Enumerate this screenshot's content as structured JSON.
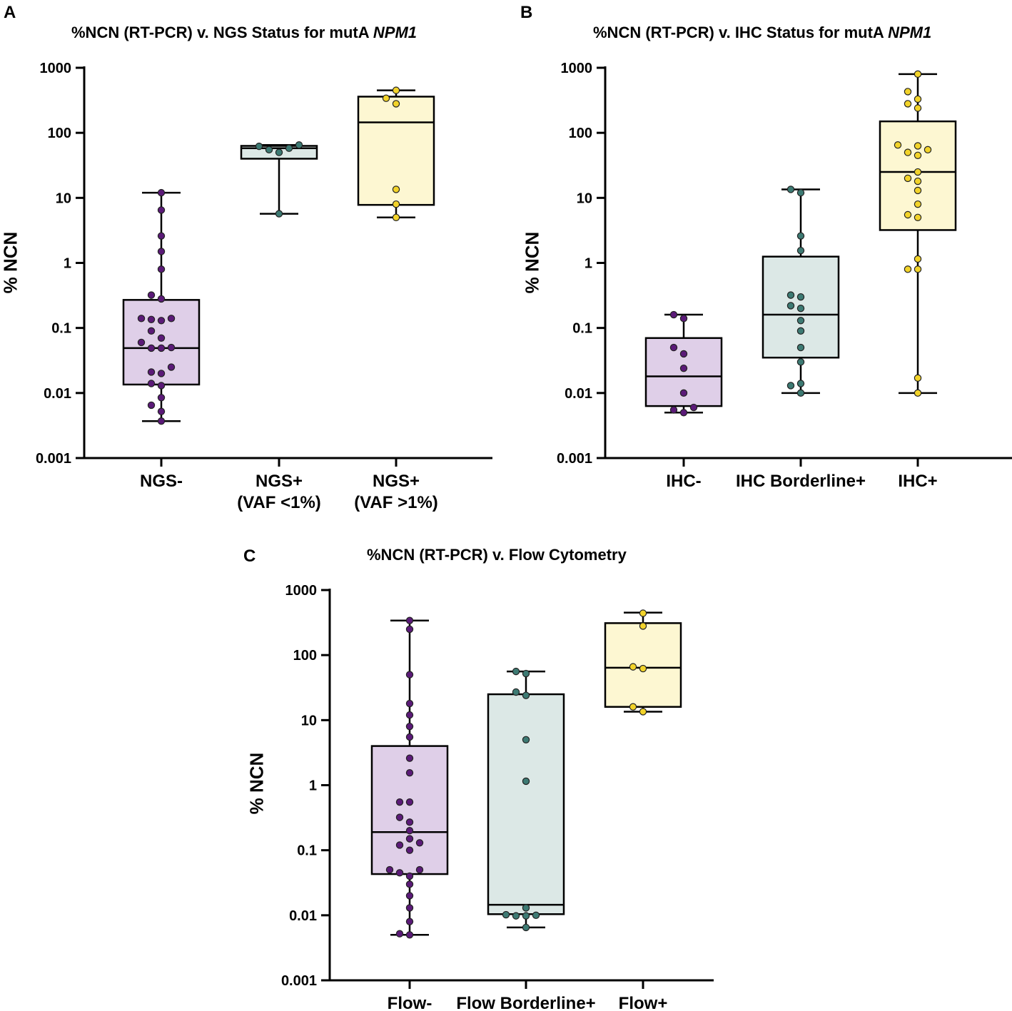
{
  "chart_data": [
    {
      "id": "A",
      "panel_label": "A",
      "type": "box",
      "title_prefix": "%NCN (RT-PCR) v. NGS Status for mutA ",
      "title_gene": "NPM1",
      "ylabel": "% NCN",
      "yscale": "log",
      "ylim": [
        0.001,
        1000
      ],
      "yticks": [
        {
          "value": 0.001,
          "label": "0.001"
        },
        {
          "value": 0.01,
          "label": "0.01"
        },
        {
          "value": 0.1,
          "label": "0.1"
        },
        {
          "value": 1,
          "label": "1"
        },
        {
          "value": 10,
          "label": "10"
        },
        {
          "value": 100,
          "label": "100"
        },
        {
          "value": 1000,
          "label": "1000"
        }
      ],
      "groups": [
        {
          "label_lines": [
            "NGS-"
          ],
          "color": "#dfcfe8",
          "point_color": "#5b1a78",
          "whisker_low": 0.0037,
          "q1": 0.0135,
          "median": 0.049,
          "q3": 0.27,
          "whisker_high": 12,
          "points": [
            0.0037,
            0.0052,
            0.0065,
            0.0085,
            0.013,
            0.014,
            0.02,
            0.021,
            0.025,
            0.049,
            0.049,
            0.05,
            0.06,
            0.07,
            0.09,
            0.13,
            0.135,
            0.14,
            0.14,
            0.28,
            0.32,
            0.8,
            1.5,
            2.6,
            6.5,
            12
          ]
        },
        {
          "label_lines": [
            "NGS+",
            "(VAF <1%)"
          ],
          "color": "#dce8e6",
          "point_color": "#3d7a73",
          "whisker_low": 5.7,
          "q1": 40,
          "median": 58,
          "q3": 63,
          "whisker_high": 65,
          "points": [
            5.7,
            50,
            55,
            58,
            62,
            65
          ]
        },
        {
          "label_lines": [
            "NGS+",
            "(VAF >1%)"
          ],
          "color": "#fdf7d2",
          "point_color": "#f2d32a",
          "whisker_low": 5,
          "q1": 7.8,
          "median": 145,
          "q3": 360,
          "whisker_high": 450,
          "points": [
            5,
            8,
            13.5,
            280,
            340,
            450
          ]
        }
      ]
    },
    {
      "id": "B",
      "panel_label": "B",
      "type": "box",
      "title_prefix": "%NCN (RT-PCR) v. IHC Status for mutA ",
      "title_gene": "NPM1",
      "ylabel": "% NCN",
      "yscale": "log",
      "ylim": [
        0.001,
        1000
      ],
      "yticks": [
        {
          "value": 0.001,
          "label": "0.001"
        },
        {
          "value": 0.01,
          "label": "0.01"
        },
        {
          "value": 0.1,
          "label": "0.1"
        },
        {
          "value": 1,
          "label": "1"
        },
        {
          "value": 10,
          "label": "10"
        },
        {
          "value": 100,
          "label": "100"
        },
        {
          "value": 1000,
          "label": "1000"
        }
      ],
      "groups": [
        {
          "label_lines": [
            "IHC-"
          ],
          "color": "#dfcfe8",
          "point_color": "#5b1a78",
          "whisker_low": 0.005,
          "q1": 0.0063,
          "median": 0.018,
          "q3": 0.07,
          "whisker_high": 0.16,
          "points": [
            0.005,
            0.0055,
            0.006,
            0.01,
            0.024,
            0.04,
            0.05,
            0.14,
            0.16
          ]
        },
        {
          "label_lines": [
            "IHC Borderline+"
          ],
          "color": "#dce8e6",
          "point_color": "#3d7a73",
          "whisker_low": 0.01,
          "q1": 0.035,
          "median": 0.16,
          "q3": 1.25,
          "whisker_high": 13.5,
          "points": [
            0.01,
            0.013,
            0.014,
            0.03,
            0.05,
            0.09,
            0.13,
            0.2,
            0.22,
            0.3,
            0.32,
            1.55,
            2.6,
            12,
            13.5
          ]
        },
        {
          "label_lines": [
            "IHC+"
          ],
          "color": "#fdf7d2",
          "point_color": "#f2d32a",
          "whisker_low": 0.01,
          "q1": 3.2,
          "median": 25,
          "q3": 150,
          "whisker_high": 800,
          "points": [
            0.01,
            0.017,
            0.8,
            0.8,
            1.15,
            5,
            5.5,
            8,
            13,
            18,
            20,
            25,
            45,
            50,
            55,
            63,
            65,
            240,
            280,
            330,
            430,
            800
          ]
        }
      ]
    },
    {
      "id": "C",
      "panel_label": "C",
      "type": "box",
      "title_prefix": "%NCN (RT-PCR) v. Flow Cytometry",
      "title_gene": "",
      "ylabel": "% NCN",
      "yscale": "log",
      "ylim": [
        0.001,
        1000
      ],
      "yticks": [
        {
          "value": 0.001,
          "label": "0.001"
        },
        {
          "value": 0.01,
          "label": "0.01"
        },
        {
          "value": 0.1,
          "label": "0.1"
        },
        {
          "value": 1,
          "label": "1"
        },
        {
          "value": 10,
          "label": "10"
        },
        {
          "value": 100,
          "label": "100"
        },
        {
          "value": 1000,
          "label": "1000"
        }
      ],
      "groups": [
        {
          "label_lines": [
            "Flow-"
          ],
          "color": "#dfcfe8",
          "point_color": "#5b1a78",
          "whisker_low": 0.005,
          "q1": 0.043,
          "median": 0.19,
          "q3": 4,
          "whisker_high": 340,
          "points": [
            0.005,
            0.0052,
            0.008,
            0.013,
            0.02,
            0.03,
            0.04,
            0.045,
            0.05,
            0.05,
            0.1,
            0.12,
            0.13,
            0.15,
            0.2,
            0.27,
            0.32,
            0.55,
            0.55,
            1.55,
            2.6,
            5.5,
            8,
            12,
            18,
            50,
            250,
            340
          ]
        },
        {
          "label_lines": [
            "Flow Borderline+"
          ],
          "color": "#dce8e6",
          "point_color": "#3d7a73",
          "whisker_low": 0.0065,
          "q1": 0.0104,
          "median": 0.0145,
          "q3": 25,
          "whisker_high": 56,
          "points": [
            0.0065,
            0.0098,
            0.0098,
            0.01,
            0.0102,
            0.013,
            1.15,
            5,
            24,
            27,
            52,
            56
          ]
        },
        {
          "label_lines": [
            "Flow+"
          ],
          "color": "#fdf7d2",
          "point_color": "#f2d32a",
          "whisker_low": 13.5,
          "q1": 16,
          "median": 64,
          "q3": 310,
          "whisker_high": 450,
          "points": [
            13.5,
            16,
            62,
            66,
            280,
            440
          ]
        }
      ]
    }
  ]
}
